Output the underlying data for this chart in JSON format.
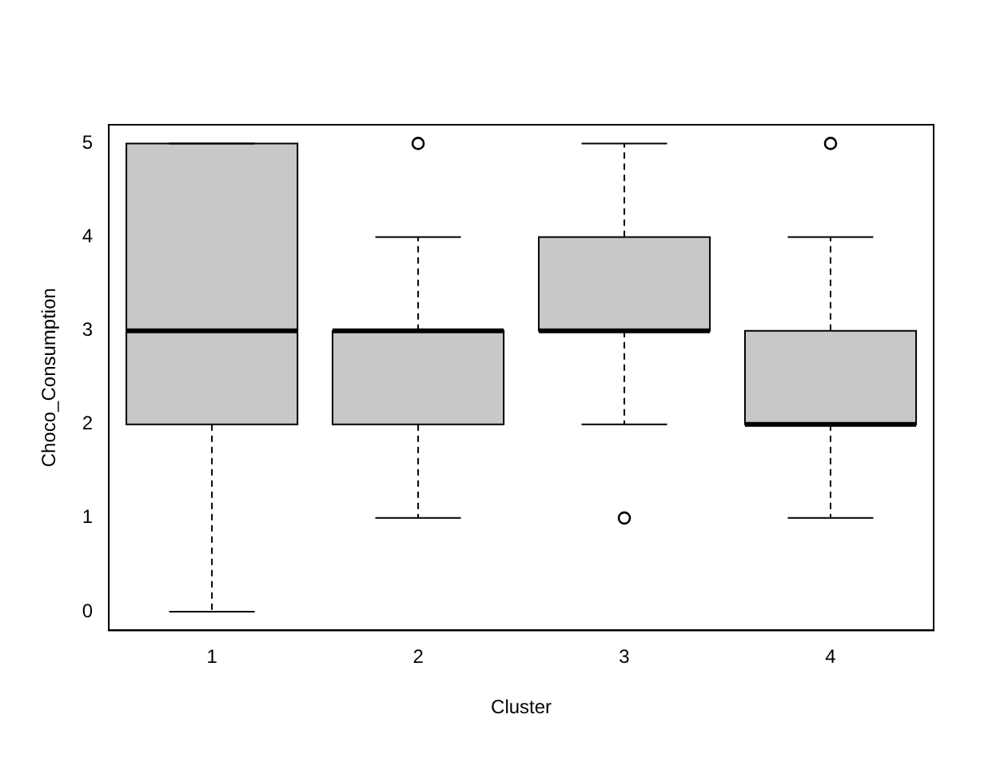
{
  "chart_data": {
    "type": "box",
    "xlabel": "Cluster",
    "ylabel": "Choco_Consumption",
    "categories": [
      "1",
      "2",
      "3",
      "4"
    ],
    "color": "#c8c8c8",
    "ylim": [
      -0.2,
      5.2
    ],
    "yticks": [
      0,
      1,
      2,
      3,
      4,
      5
    ],
    "boxes": [
      {
        "low": 0,
        "q1": 2,
        "median": 3,
        "q3": 5,
        "high": 5
      },
      {
        "low": 1,
        "q1": 2,
        "median": 3,
        "q3": 3,
        "high": 4,
        "outliers": [
          5
        ]
      },
      {
        "low": 2,
        "q1": 3,
        "median": 3,
        "q3": 4,
        "high": 5,
        "outliers": [
          1
        ]
      },
      {
        "low": 1,
        "q1": 2,
        "median": 2,
        "q3": 3,
        "high": 4,
        "outliers": [
          5
        ]
      }
    ]
  }
}
